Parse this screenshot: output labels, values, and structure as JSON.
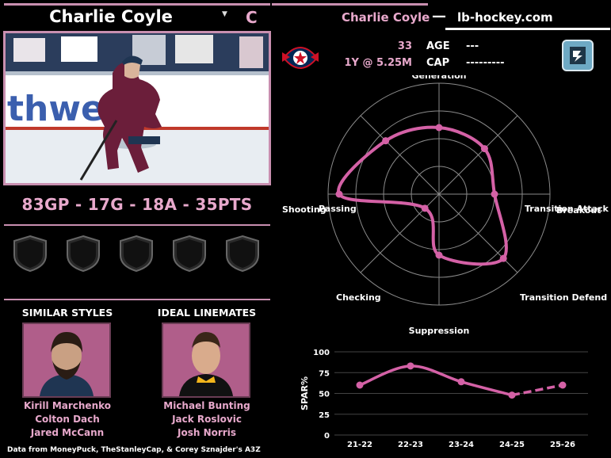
{
  "player": {
    "name": "Charlie Coyle",
    "dropdown_icon": "caret-down-icon",
    "position": "C",
    "stat_line": "83GP - 17G - 18A - 35PTS"
  },
  "header": {
    "player_name": "Charlie Coyle",
    "dash": "—",
    "site": "lb-hockey.com"
  },
  "contract": {
    "age_value": "33",
    "age_label": "AGE",
    "age_detail": "---",
    "contract_value": "1Y @ 5.25M",
    "cap_label": "CAP",
    "cap_detail": "---------"
  },
  "badges": {
    "count": 5,
    "icon": "shield-badge-icon"
  },
  "similar_styles": {
    "title": "SIMILAR STYLES",
    "names": [
      "Kirill Marchenko",
      "Colton Dach",
      "Jared McCann"
    ]
  },
  "ideal_linemates": {
    "title": "IDEAL LINEMATES",
    "names": [
      "Michael Bunting",
      "Jack Roslovic",
      "Josh Norris"
    ]
  },
  "footer": {
    "credit": "Data from MoneyPuck, TheStanleyCap, & Corey Sznajder's A3Z"
  },
  "colors": {
    "accent": "#d461a6",
    "accent_light": "#e8a9cc",
    "background": "#000000"
  },
  "chart_data": [
    {
      "type": "radar",
      "axes": [
        "Generation",
        "Transition Attack",
        "Breakout",
        "Transition Defend",
        "Suppression",
        "Checking",
        "Shooting",
        "Passing"
      ],
      "axis_label_texts": [
        "Generation",
        "Transition Attack",
        "Breakout",
        "Transition Defend",
        "Suppression",
        "Checking",
        "Shooting",
        "Passing"
      ],
      "values": [
        60,
        58,
        50,
        82,
        55,
        18,
        90,
        68
      ],
      "range": [
        0,
        100
      ],
      "grid_rings": 4,
      "color": "#d461a6"
    },
    {
      "type": "line",
      "ylabel": "SPAR%",
      "categories": [
        "21-22",
        "22-23",
        "23-24",
        "24-25",
        "25-26"
      ],
      "values": [
        60,
        83,
        64,
        48,
        60
      ],
      "projected_from_index": 3,
      "ylim": [
        0,
        100
      ],
      "yticks": [
        0,
        25,
        50,
        75,
        100
      ],
      "grid": true,
      "color": "#d461a6"
    }
  ]
}
